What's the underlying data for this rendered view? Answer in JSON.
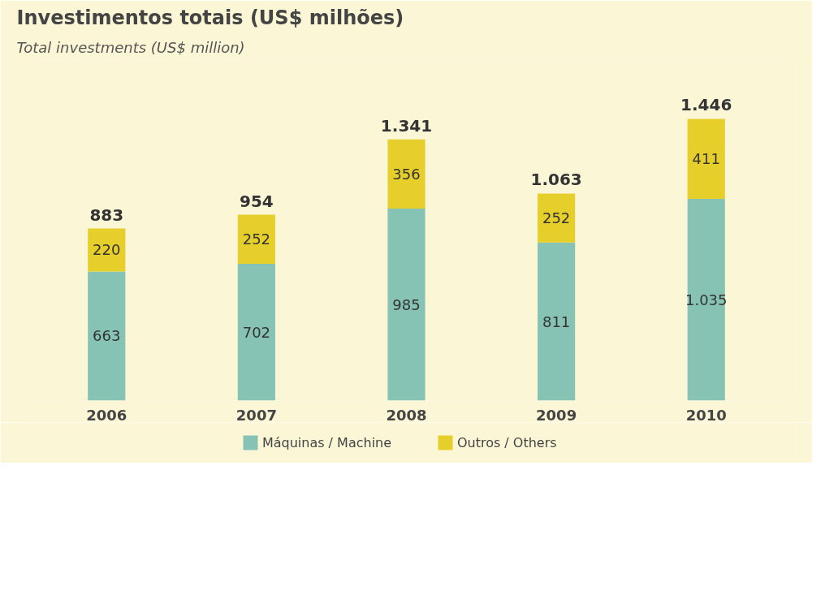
{
  "chart_data": {
    "type": "bar",
    "title": "Investimentos totais (US$ milhões)",
    "subtitle": "Total investments (US$ million)",
    "categories": [
      "2006",
      "2007",
      "2008",
      "2009",
      "2010"
    ],
    "stacked": true,
    "series": [
      {
        "name": "Máquinas / Machine",
        "color": "#86c3b4",
        "values": [
          663,
          702,
          985,
          811,
          1035
        ],
        "value_labels": [
          "663",
          "702",
          "985",
          "811",
          "1.035"
        ]
      },
      {
        "name": "Outros / Others",
        "color": "#e6cf2a",
        "values": [
          220,
          252,
          356,
          252,
          411
        ],
        "value_labels": [
          "220",
          "252",
          "356",
          "252",
          "411"
        ]
      }
    ],
    "totals": [
      "883",
      "954",
      "1.341",
      "1.063",
      "1.446"
    ],
    "ylim": [
      0,
      1750
    ],
    "tick_labels": "x",
    "grid": false,
    "legend": "bottom"
  }
}
